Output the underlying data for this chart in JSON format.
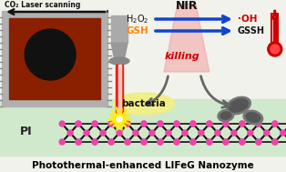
{
  "bg_color": "#f2f2ec",
  "title": "Photothermal-enhanced LIFeG Nanozyme",
  "title_color": "#000000",
  "title_fontsize": 7.5,
  "laser_label": "CO₂ Laser scanning",
  "NIR_label": "NIR",
  "OH_label": "·OH",
  "GSH_label": "GSH",
  "GSSH_label": "GSSH",
  "killing_label": "killing",
  "bacteria_label": "bacteria",
  "PI_label": "PI",
  "board_outer_color": "#b0b0b0",
  "board_inner_color": "#8B2000",
  "board_circle_color": "#111111",
  "nozzle_color": "#aaaaaa",
  "flame_red": "#ee1100",
  "flame_orange": "#ff6600",
  "flame_yellow": "#ffee00",
  "thermometer_red": "#cc0000",
  "arrow_blue": "#1144cc",
  "killing_red": "#cc0000",
  "graphene_color": "#111111",
  "node_color": "#ee44aa",
  "substrate_color": "#d0e8cc",
  "nir_cone_color": "#f0a0a0",
  "dead_bact_color": "#666666",
  "dead_bact_dark": "#444444",
  "gray_arrow": "#666666",
  "H2O2_color": "#111111",
  "tick_color": "#888888"
}
